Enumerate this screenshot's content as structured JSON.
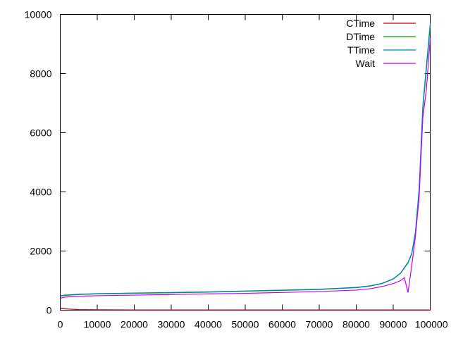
{
  "chart_data": {
    "type": "line",
    "title": "",
    "xlabel": "",
    "ylabel": "",
    "xlim": [
      0,
      100000
    ],
    "ylim": [
      0,
      10000
    ],
    "xticks": [
      "0",
      "10000",
      "20000",
      "30000",
      "40000",
      "50000",
      "60000",
      "70000",
      "80000",
      "90000",
      "100000"
    ],
    "yticks": [
      "0",
      "2000",
      "4000",
      "6000",
      "8000",
      "10000"
    ],
    "grid": false,
    "legend_position": "top-right",
    "series": [
      {
        "name": "CTime",
        "color": "#cc0000",
        "x": [
          0,
          2000,
          5000,
          10000,
          20000,
          30000,
          40000,
          50000,
          60000,
          70000,
          80000,
          90000,
          95000,
          100000
        ],
        "y": [
          60,
          40,
          20,
          15,
          10,
          10,
          10,
          10,
          10,
          10,
          10,
          10,
          10,
          10
        ]
      },
      {
        "name": "DTime",
        "color": "#00a000",
        "x": [
          0,
          1000,
          5000,
          10000,
          20000,
          30000,
          40000,
          50000,
          60000,
          70000,
          80000,
          84000,
          87000,
          90000,
          92000,
          94000,
          95000,
          96000,
          97000,
          98000,
          99000,
          100000
        ],
        "y": [
          470,
          500,
          530,
          550,
          570,
          590,
          610,
          640,
          670,
          700,
          760,
          820,
          900,
          1050,
          1250,
          1600,
          1900,
          2600,
          4000,
          6800,
          8200,
          9600
        ]
      },
      {
        "name": "TTime",
        "color": "#0080c0",
        "x": [
          0,
          1000,
          5000,
          10000,
          20000,
          30000,
          40000,
          50000,
          60000,
          70000,
          80000,
          84000,
          87000,
          90000,
          92000,
          94000,
          95000,
          96000,
          97000,
          98000,
          99000,
          100000
        ],
        "y": [
          480,
          510,
          540,
          560,
          580,
          600,
          620,
          650,
          680,
          710,
          770,
          830,
          910,
          1060,
          1260,
          1620,
          1920,
          2650,
          4100,
          6900,
          8300,
          9700
        ]
      },
      {
        "name": "Wait",
        "color": "#c000ff",
        "x": [
          0,
          1000,
          5000,
          10000,
          20000,
          30000,
          40000,
          50000,
          60000,
          70000,
          80000,
          84000,
          87000,
          90000,
          92000,
          93000,
          94000,
          95000,
          96000,
          97000,
          98000,
          99000,
          100000
        ],
        "y": [
          400,
          440,
          470,
          490,
          510,
          530,
          550,
          570,
          600,
          630,
          680,
          730,
          800,
          900,
          1000,
          1100,
          600,
          1500,
          2500,
          3800,
          6500,
          7500,
          9200
        ]
      }
    ]
  }
}
